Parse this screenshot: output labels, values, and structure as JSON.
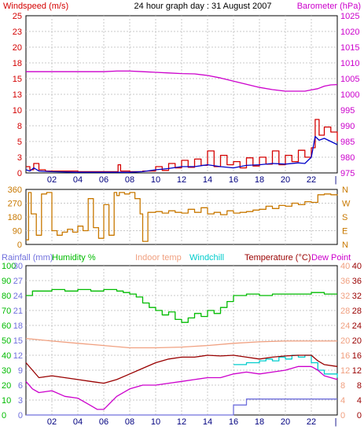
{
  "title": "24 hour graph day : 31 August 2007",
  "colors": {
    "wind": "#d40000",
    "gust": "#0000c8",
    "baro": "#cc00cc",
    "dir": "#c87800",
    "rain": "#7070dd",
    "humidity": "#00bb00",
    "indoor": "#f0a080",
    "windchill": "#00cccc",
    "temp": "#990000",
    "dew": "#cc00cc",
    "grid": "#c8c8c8"
  },
  "chart_data": [
    {
      "type": "line",
      "title": "24 hour graph day : 31 August 2007",
      "left_axis": {
        "label": "Windspeed (m/s)",
        "ticks": [
          "25",
          "23",
          "20",
          "18",
          "15",
          "13",
          "10",
          "8",
          "5",
          "3",
          "0"
        ]
      },
      "right_axis": {
        "label": "Barometer (hPa)",
        "ticks": [
          "1025",
          "1020",
          "1015",
          "1010",
          "1005",
          "1000",
          "995",
          "990",
          "985",
          "980",
          "975"
        ]
      },
      "x_ticks": [
        "02",
        "04",
        "06",
        "08",
        "10",
        "12",
        "14",
        "16",
        "18",
        "20",
        "22"
      ],
      "x_end_marker": "|",
      "grid": true,
      "series": [
        {
          "key": "baro",
          "axis": "right",
          "x": [
            0,
            2,
            4,
            6,
            7,
            8,
            9,
            10,
            11,
            12,
            13,
            14,
            15,
            16,
            17,
            18,
            19,
            20,
            21,
            21.5,
            22,
            22.5,
            23,
            23.5,
            24
          ],
          "values": [
            1007.2,
            1007.2,
            1007.2,
            1007.2,
            1007.4,
            1007.4,
            1007.2,
            1007,
            1006.8,
            1006.6,
            1006.5,
            1006,
            1005.2,
            1004.2,
            1003.2,
            1002.2,
            1001.5,
            1001,
            1001,
            1001,
            1001.4,
            1001.8,
            1002.6,
            1003,
            1003.1
          ]
        },
        {
          "key": "wind",
          "axis": "left",
          "x": [
            0,
            0.3,
            0.6,
            1,
            1.5,
            2,
            4,
            6,
            7,
            7.1,
            7.3,
            8,
            9,
            10,
            10.5,
            11,
            11.5,
            12,
            12.5,
            13,
            13.5,
            14,
            14.5,
            15,
            15.5,
            16,
            16.5,
            17,
            17.5,
            18,
            18.5,
            19,
            19.5,
            20,
            20.5,
            21,
            21.5,
            22,
            22.3,
            22.6,
            23,
            23.5,
            24
          ],
          "values": [
            1,
            0.5,
            1.5,
            0.5,
            0.3,
            0.3,
            0.2,
            0.2,
            0.2,
            1.3,
            0.3,
            0.2,
            0.3,
            1,
            0.4,
            1.5,
            0.8,
            2,
            0.9,
            2.2,
            1.2,
            3.5,
            1,
            2.8,
            1.3,
            1.8,
            0.8,
            2.4,
            1.1,
            2.5,
            1.4,
            3.5,
            1.3,
            2.8,
            1.8,
            3.6,
            2.5,
            4,
            8.5,
            6,
            7.3,
            6.5,
            5
          ]
        },
        {
          "key": "gust",
          "axis": "left",
          "x": [
            0,
            0.3,
            0.6,
            1,
            2,
            4,
            6,
            7,
            8,
            9,
            10,
            11,
            12,
            13,
            14,
            15,
            16,
            17,
            18,
            19,
            20,
            21,
            21.5,
            22,
            22.3,
            22.6,
            23,
            23.5,
            24
          ],
          "values": [
            0.5,
            0.3,
            0.8,
            0.3,
            0.2,
            0.1,
            0.1,
            0.1,
            0.1,
            0.2,
            0.5,
            0.7,
            1,
            1,
            1.3,
            1,
            0.8,
            1.2,
            1.3,
            1.5,
            1.4,
            1.6,
            1.5,
            2.5,
            5.8,
            5.2,
            5.5,
            5,
            4.5
          ]
        }
      ]
    },
    {
      "type": "line",
      "left_axis": {
        "ticks": [
          "360",
          "270",
          "180",
          "90",
          "0"
        ]
      },
      "right_axis": {
        "ticks": [
          "N",
          "W",
          "S",
          "E",
          "N"
        ]
      },
      "grid": true,
      "series": [
        {
          "key": "dir",
          "axis": "left",
          "x": [
            0,
            0.2,
            0.4,
            0.8,
            1.2,
            1.6,
            2,
            2.4,
            2.8,
            3.2,
            3.6,
            4,
            4.4,
            4.8,
            5.2,
            5.6,
            6,
            6.4,
            6.8,
            7,
            7.2,
            7.6,
            8,
            8.4,
            8.8,
            9,
            9,
            9.4,
            10,
            10.5,
            11,
            11.5,
            12,
            12.5,
            13,
            13.5,
            14,
            14.5,
            15,
            15.5,
            16,
            16.5,
            17,
            17.5,
            18,
            18.5,
            19,
            19.5,
            20,
            20.5,
            21,
            21.5,
            22,
            22.5,
            23,
            23.5,
            24
          ],
          "values": [
            30,
            340,
            200,
            60,
            330,
            340,
            90,
            60,
            80,
            100,
            80,
            120,
            90,
            300,
            110,
            40,
            260,
            60,
            340,
            320,
            340,
            330,
            340,
            300,
            200,
            200,
            20,
            210,
            215,
            205,
            220,
            210,
            205,
            230,
            210,
            240,
            200,
            210,
            195,
            220,
            205,
            210,
            215,
            225,
            230,
            250,
            235,
            255,
            250,
            270,
            260,
            280,
            275,
            325,
            330,
            325,
            320
          ]
        }
      ]
    },
    {
      "type": "line",
      "header_labels": [
        "Rainfall (mm)",
        "Humidity %",
        "Indoor temp",
        "Windchill",
        "Temperature (°C)",
        "Dew Point"
      ],
      "left_axis_rain": {
        "ticks": [
          "30",
          "27",
          "24",
          "21",
          "18",
          "15",
          "12",
          "9",
          "6",
          "3",
          "0"
        ]
      },
      "left_axis_humidity": {
        "ticks": [
          "100",
          "90",
          "80",
          "70",
          "60",
          "50",
          "40",
          "30",
          "20",
          "10",
          "0"
        ]
      },
      "right_axis_indoor": {
        "ticks": [
          "40",
          "36",
          "32",
          "28",
          "24",
          "20",
          "16",
          "12",
          "8",
          "4",
          "0"
        ]
      },
      "right_axis_temp": {
        "ticks": [
          "40",
          "36",
          "32",
          "28",
          "24",
          "20",
          "16",
          "12",
          "8",
          "4",
          "0"
        ]
      },
      "x_ticks": [
        "02",
        "04",
        "06",
        "08",
        "10",
        "12",
        "14",
        "16",
        "18",
        "20",
        "22"
      ],
      "x_end_marker": "|",
      "grid": true,
      "series": [
        {
          "key": "rain",
          "axis": "rain",
          "x": [
            0,
            15.5,
            16,
            17,
            24
          ],
          "values": [
            0,
            0,
            2,
            3.2,
            3.2
          ]
        },
        {
          "key": "humidity",
          "axis": "humidity",
          "x": [
            0,
            0.5,
            2,
            3,
            4,
            5,
            6,
            7,
            7.5,
            8,
            8.5,
            9,
            9.5,
            10,
            10.5,
            11,
            11.5,
            12,
            12.5,
            13,
            13.5,
            14,
            14.5,
            15,
            15.5,
            16,
            17,
            18,
            19,
            20,
            21,
            22,
            23,
            24
          ],
          "values": [
            80,
            83,
            84,
            83,
            84,
            83,
            84,
            83,
            82,
            81,
            79,
            75,
            72,
            70,
            67,
            69,
            64,
            62,
            65,
            68,
            66,
            70,
            68,
            72,
            76,
            80,
            81,
            80,
            81,
            81,
            81,
            82,
            81,
            81
          ]
        },
        {
          "key": "indoor",
          "axis": "indoor",
          "x": [
            0,
            2,
            4,
            6,
            8,
            9,
            10,
            12,
            14,
            16,
            18,
            20,
            22,
            24
          ],
          "values": [
            20.5,
            19.8,
            19.2,
            18.6,
            18,
            18,
            18,
            18.2,
            18.6,
            19.2,
            19.6,
            19.8,
            19.8,
            19.8
          ]
        },
        {
          "key": "windchill",
          "axis": "temp",
          "x": [
            16,
            17,
            18,
            18.5,
            19,
            19.5,
            20,
            20.5,
            21,
            21.5,
            22,
            22.5,
            23,
            24
          ],
          "values": [
            13.5,
            14,
            14.5,
            15,
            14.5,
            15.5,
            15,
            16,
            15.5,
            16,
            14,
            12,
            11,
            10
          ]
        },
        {
          "key": "temp",
          "axis": "temp",
          "x": [
            0,
            0.5,
            1,
            2,
            3,
            4,
            5,
            6,
            7,
            8,
            9,
            10,
            11,
            12,
            13,
            14,
            15,
            16,
            17,
            18,
            19,
            20,
            21,
            22,
            22.5,
            23,
            24
          ],
          "values": [
            14,
            12,
            10,
            10.5,
            10,
            9.5,
            9,
            8.5,
            9.5,
            11,
            12.5,
            14,
            15,
            15.5,
            15.5,
            16,
            15.8,
            16,
            15.5,
            15,
            15.5,
            15.8,
            16,
            16,
            14.5,
            13.5,
            13
          ]
        },
        {
          "key": "dew",
          "axis": "temp",
          "x": [
            0,
            0.5,
            1,
            2,
            3,
            4,
            5,
            5.5,
            6,
            7,
            8,
            9,
            10,
            11,
            12,
            13,
            14,
            15,
            16,
            17,
            18,
            19,
            20,
            21,
            22,
            22.5,
            23,
            24
          ],
          "values": [
            9,
            7,
            6,
            6.5,
            5,
            4.5,
            2.5,
            1.5,
            1.5,
            5,
            7,
            8,
            8,
            8.5,
            9,
            9.5,
            10,
            10,
            11,
            11.5,
            11,
            11.5,
            12,
            13,
            13,
            12,
            10.5,
            9.5
          ]
        }
      ]
    }
  ]
}
